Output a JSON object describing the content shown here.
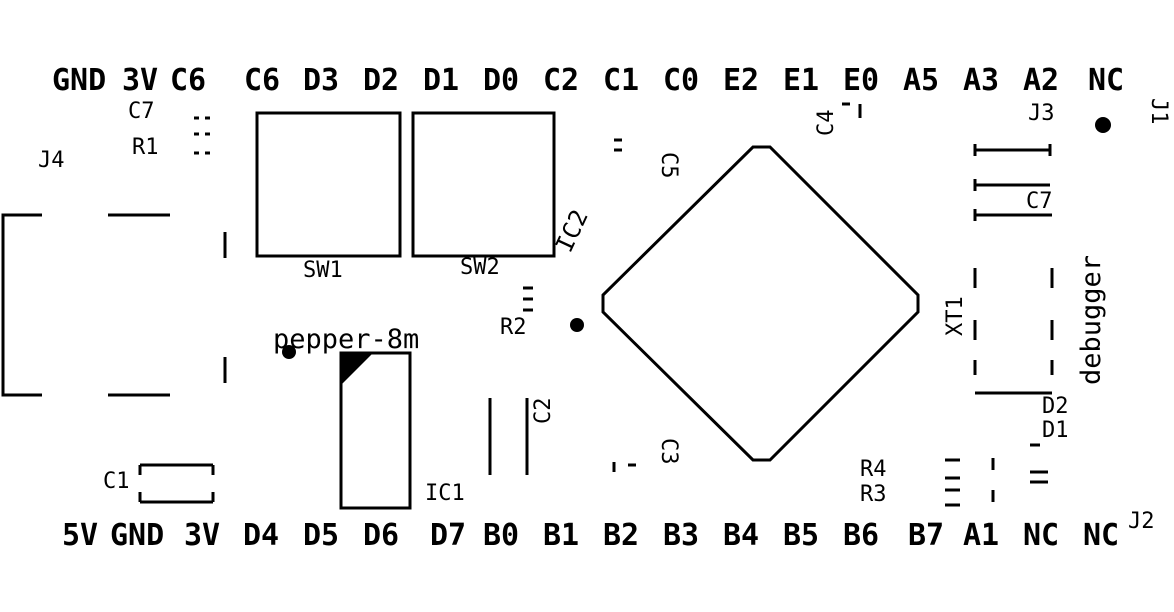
{
  "board": {
    "title": "pepper-8m",
    "debugger_label": "debugger"
  },
  "top_header_pins": [
    "GND",
    "3V",
    "C6",
    "C6",
    "D3",
    "D2",
    "D1",
    "D0",
    "C2",
    "C1",
    "C0",
    "E2",
    "E1",
    "E0",
    "A5",
    "A3",
    "A2",
    "NC"
  ],
  "bottom_header_pins": [
    "5V",
    "GND",
    "3V",
    "D4",
    "D5",
    "D6",
    "D7",
    "B0",
    "B1",
    "B2",
    "B3",
    "B4",
    "B5",
    "B6",
    "B7",
    "A1",
    "NC",
    "NC"
  ],
  "components": {
    "C7_left": "C7",
    "R1": "R1",
    "J4": "J4",
    "SW1": "SW1",
    "SW2": "SW2",
    "IC2": "IC2",
    "R2": "R2",
    "C5": "C5",
    "C4": "C4",
    "J3": "J3",
    "J1": "J1",
    "C7_right": "C7",
    "XT1": "XT1",
    "C2": "C2",
    "C3": "C3",
    "IC1": "IC1",
    "C1": "C1",
    "R4": "R4",
    "R3": "R3",
    "D2": "D2",
    "D1": "D1",
    "J2": "J2"
  }
}
